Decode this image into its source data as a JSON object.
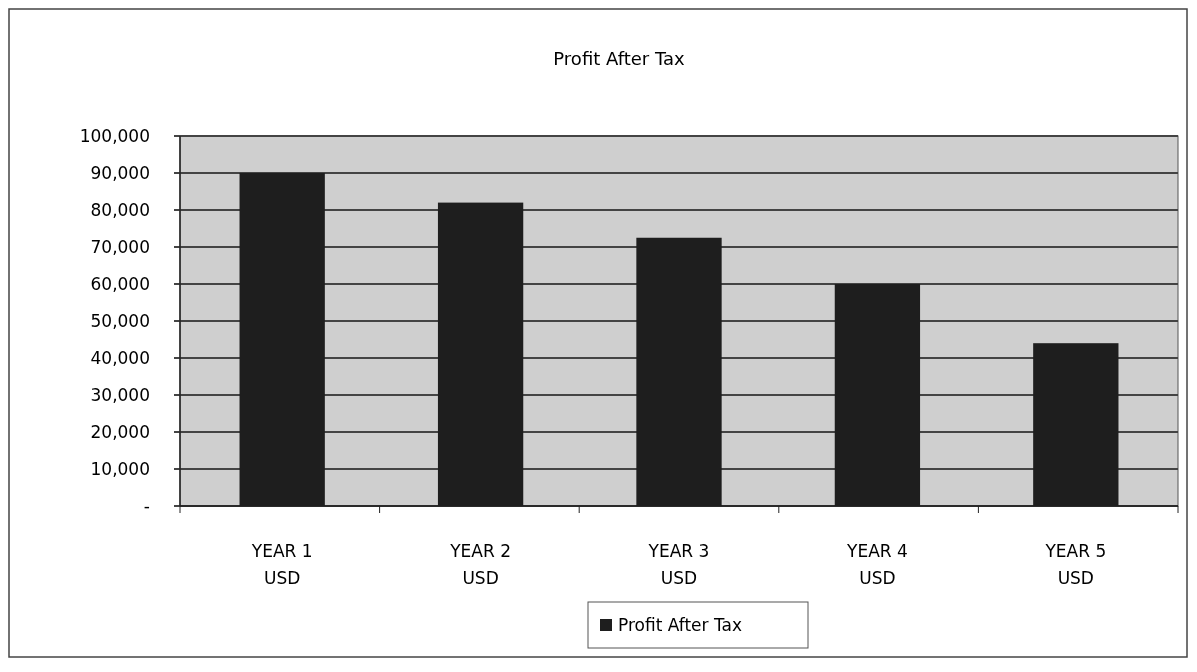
{
  "chart_data": {
    "type": "bar",
    "title": "Profit After Tax",
    "categories": [
      "YEAR 1\nUSD",
      "YEAR 2\nUSD",
      "YEAR 3\nUSD",
      "YEAR 4\nUSD",
      "YEAR 5\nUSD"
    ],
    "series": [
      {
        "name": "Profit After Tax",
        "color": "#1e1e1e",
        "values": [
          90000,
          82000,
          72500,
          60000,
          44000
        ]
      }
    ],
    "ylim": [
      0,
      100000
    ],
    "yticks": [
      {
        "value": 0,
        "label": "-"
      },
      {
        "value": 10000,
        "label": "10,000"
      },
      {
        "value": 20000,
        "label": "20,000"
      },
      {
        "value": 30000,
        "label": "30,000"
      },
      {
        "value": 40000,
        "label": "40,000"
      },
      {
        "value": 50000,
        "label": "50,000"
      },
      {
        "value": 60000,
        "label": "60,000"
      },
      {
        "value": 70000,
        "label": "70,000"
      },
      {
        "value": 80000,
        "label": "80,000"
      },
      {
        "value": 90000,
        "label": "90,000"
      },
      {
        "value": 100000,
        "label": "100,000"
      }
    ],
    "grid": "y",
    "legend": "bottom"
  }
}
